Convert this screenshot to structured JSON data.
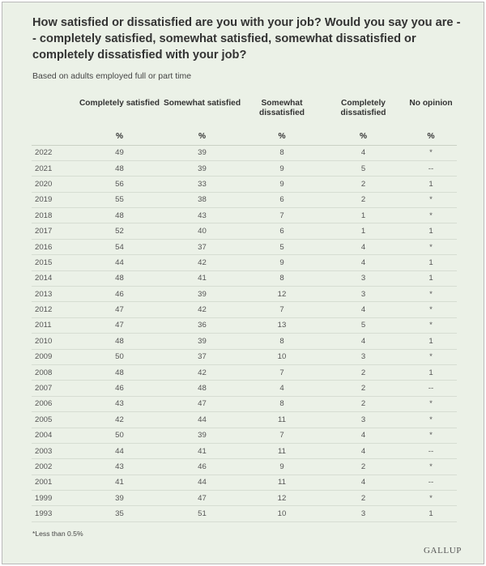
{
  "title": "How satisfied or dissatisfied are you with your job? Would you say you are -- completely satisfied, somewhat satisfied, somewhat dissatisfied or completely dissatisfied with your job?",
  "subtitle": "Based on adults employed full or part time",
  "table": {
    "headers": [
      "",
      "Completely satisfied",
      "Somewhat satisfied",
      "Somewhat dissatisfied",
      "Completely dissatisfied",
      "No opinion"
    ],
    "units": [
      "",
      "%",
      "%",
      "%",
      "%",
      "%"
    ],
    "rows": [
      [
        "2022",
        "49",
        "39",
        "8",
        "4",
        "*"
      ],
      [
        "2021",
        "48",
        "39",
        "9",
        "5",
        "--"
      ],
      [
        "2020",
        "56",
        "33",
        "9",
        "2",
        "1"
      ],
      [
        "2019",
        "55",
        "38",
        "6",
        "2",
        "*"
      ],
      [
        "2018",
        "48",
        "43",
        "7",
        "1",
        "*"
      ],
      [
        "2017",
        "52",
        "40",
        "6",
        "1",
        "1"
      ],
      [
        "2016",
        "54",
        "37",
        "5",
        "4",
        "*"
      ],
      [
        "2015",
        "44",
        "42",
        "9",
        "4",
        "1"
      ],
      [
        "2014",
        "48",
        "41",
        "8",
        "3",
        "1"
      ],
      [
        "2013",
        "46",
        "39",
        "12",
        "3",
        "*"
      ],
      [
        "2012",
        "47",
        "42",
        "7",
        "4",
        "*"
      ],
      [
        "2011",
        "47",
        "36",
        "13",
        "5",
        "*"
      ],
      [
        "2010",
        "48",
        "39",
        "8",
        "4",
        "1"
      ],
      [
        "2009",
        "50",
        "37",
        "10",
        "3",
        "*"
      ],
      [
        "2008",
        "48",
        "42",
        "7",
        "2",
        "1"
      ],
      [
        "2007",
        "46",
        "48",
        "4",
        "2",
        "--"
      ],
      [
        "2006",
        "43",
        "47",
        "8",
        "2",
        "*"
      ],
      [
        "2005",
        "42",
        "44",
        "11",
        "3",
        "*"
      ],
      [
        "2004",
        "50",
        "39",
        "7",
        "4",
        "*"
      ],
      [
        "2003",
        "44",
        "41",
        "11",
        "4",
        "--"
      ],
      [
        "2002",
        "43",
        "46",
        "9",
        "2",
        "*"
      ],
      [
        "2001",
        "41",
        "44",
        "11",
        "4",
        "--"
      ],
      [
        "1999",
        "39",
        "47",
        "12",
        "2",
        "*"
      ],
      [
        "1993",
        "35",
        "51",
        "10",
        "3",
        "1"
      ]
    ]
  },
  "footnote": "*Less than 0.5%",
  "logo_text": "GALLUP",
  "colors": {
    "card_background": "#ebf1e7",
    "border": "#b9b9b9",
    "row_divider": "#d6ddd2",
    "text": "#333333"
  }
}
